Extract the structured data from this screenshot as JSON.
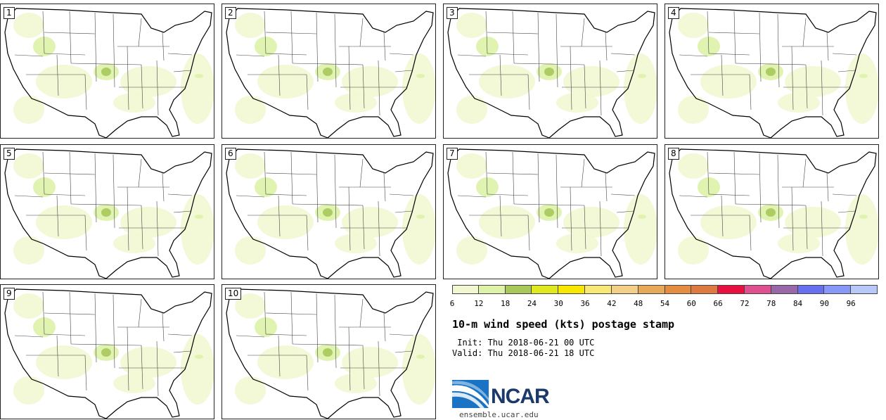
{
  "stamps": [
    {
      "label": "1"
    },
    {
      "label": "2"
    },
    {
      "label": "3"
    },
    {
      "label": "4"
    },
    {
      "label": "5"
    },
    {
      "label": "6"
    },
    {
      "label": "7"
    },
    {
      "label": "8"
    },
    {
      "label": "9"
    },
    {
      "label": "10"
    }
  ],
  "colorbar": {
    "ticks": [
      "6",
      "12",
      "18",
      "24",
      "30",
      "36",
      "42",
      "48",
      "54",
      "60",
      "66",
      "72",
      "78",
      "84",
      "90",
      "96"
    ],
    "colors": [
      "#f2f7d2",
      "#def2a8",
      "#a8c85c",
      "#e0e820",
      "#f8e800",
      "#f8e878",
      "#f4cf88",
      "#e8a858",
      "#e48c40",
      "#dc7a40",
      "#e81040",
      "#e05090",
      "#9868a8",
      "#6870f0",
      "#8898f8",
      "#b8c8f8"
    ]
  },
  "title": "10-m wind speed (kts) postage stamp",
  "init_text": " Init: Thu 2018-06-21 00 UTC",
  "valid_text": "Valid: Thu 2018-06-21 18 UTC",
  "logo": {
    "name": "NCAR",
    "url": "ensemble.ucar.edu"
  }
}
